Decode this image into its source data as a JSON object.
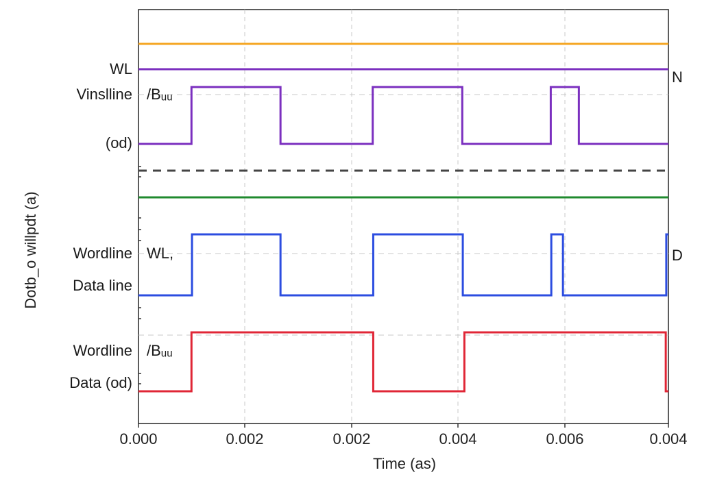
{
  "chart_data": {
    "type": "line",
    "title": "",
    "xlabel": "Time (as)",
    "ylabel": "Dotb_o willpdt (a)",
    "x_tick_labels": [
      "0.000",
      "0.002",
      "0.002",
      "0.004",
      "0.006",
      "0.004"
    ],
    "grid": true,
    "signal_labels_left": [
      "WL",
      "Vinslline",
      "(od)",
      "Wordline",
      "Data line",
      "Wordline",
      "Data (od)"
    ],
    "signal_labels_inner": [
      "/Bᵤᵤ",
      "WL,",
      "/Bᵤᵤ"
    ],
    "signal_labels_right": [
      "N",
      "D"
    ],
    "colors": {
      "orange": "#f5a623",
      "purple": "#7b2fbf",
      "green": "#1f8a2e",
      "blue": "#2c4de0",
      "red": "#e02636",
      "dashed": "#444444"
    },
    "series": [
      {
        "color": "orange",
        "style": "constant",
        "level": "high"
      },
      {
        "color": "purple",
        "style": "constant",
        "level": "high"
      },
      {
        "color": "purple",
        "style": "pulse",
        "edges": [
          0.001,
          0.00268,
          0.00442,
          0.00611,
          0.00778,
          0.00831
        ]
      },
      {
        "color": "dashed",
        "style": "constant",
        "level": "high"
      },
      {
        "color": "green",
        "style": "constant",
        "level": "high"
      },
      {
        "color": "blue",
        "style": "pulse",
        "edges": [
          0.00101,
          0.00268,
          0.00443,
          0.00612,
          0.00779,
          0.00801,
          0.00996
        ]
      },
      {
        "color": "red",
        "style": "pulse",
        "edges": [
          0.001,
          0.00443,
          0.00615,
          0.00995
        ]
      }
    ]
  }
}
